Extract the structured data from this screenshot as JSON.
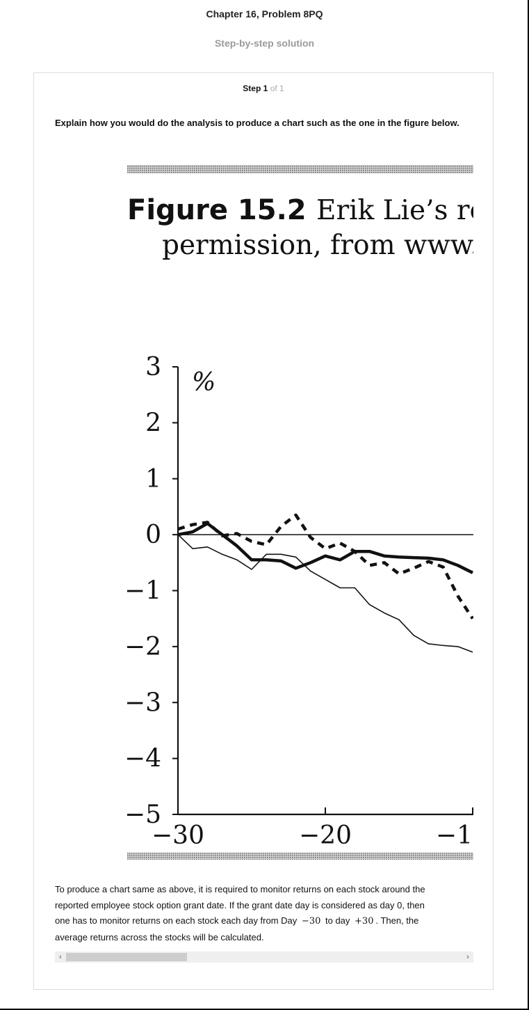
{
  "header": {
    "title": "Chapter 16, Problem 8PQ",
    "subtitle": "Step-by-step solution"
  },
  "step": {
    "word": "Step",
    "number": "1",
    "of_text": "of 1"
  },
  "question": "Explain how you would do the analysis to produce a chart such as the one in the figure below.",
  "figure": {
    "title_bold": "Figure 15.2",
    "title_rest": "Erik Lie’s re",
    "caption_line2": "permission, from www.bi",
    "ylabel": "%"
  },
  "chart_data": {
    "type": "line",
    "xlim": [
      -30,
      -10
    ],
    "ylim": [
      -5,
      3
    ],
    "x_ticks": [
      "−30",
      "−20",
      "−1"
    ],
    "y_ticks": [
      "3",
      "2",
      "1",
      "0",
      "−1",
      "−2",
      "−3",
      "−4",
      "−5"
    ],
    "ylabel": "%",
    "zero_line": true,
    "series": [
      {
        "style": "thick-solid",
        "x": [
          -30,
          -29,
          -28,
          -27,
          -26,
          -25,
          -24,
          -23,
          -22,
          -21,
          -20,
          -19,
          -18,
          -17,
          -16,
          -15,
          -14,
          -13,
          -12,
          -11,
          -10
        ],
        "y": [
          0.0,
          0.05,
          0.2,
          0.0,
          -0.2,
          -0.45,
          -0.45,
          -0.47,
          -0.6,
          -0.5,
          -0.38,
          -0.45,
          -0.3,
          -0.3,
          -0.38,
          -0.4,
          -0.41,
          -0.42,
          -0.45,
          -0.55,
          -0.68
        ]
      },
      {
        "style": "thick-dashed",
        "x": [
          -30,
          -29,
          -28,
          -27,
          -26,
          -25,
          -24,
          -23,
          -22,
          -21,
          -20,
          -19,
          -18,
          -17,
          -16,
          -15,
          -14,
          -13,
          -12,
          -11,
          -10
        ],
        "y": [
          0.1,
          0.18,
          0.22,
          -0.02,
          0.02,
          -0.12,
          -0.18,
          0.15,
          0.35,
          -0.05,
          -0.25,
          -0.15,
          -0.3,
          -0.55,
          -0.5,
          -0.7,
          -0.6,
          -0.48,
          -0.58,
          -1.1,
          -1.5
        ]
      },
      {
        "style": "thin-solid",
        "x": [
          -30,
          -29,
          -28,
          -27,
          -26,
          -25,
          -24,
          -23,
          -22,
          -21,
          -20,
          -19,
          -18,
          -17,
          -16,
          -15,
          -14,
          -13,
          -12,
          -11,
          -10
        ],
        "y": [
          0.0,
          -0.25,
          -0.22,
          -0.35,
          -0.45,
          -0.62,
          -0.35,
          -0.35,
          -0.4,
          -0.65,
          -0.8,
          -0.95,
          -0.95,
          -1.25,
          -1.4,
          -1.52,
          -1.8,
          -1.95,
          -1.98,
          -2.0,
          -2.1
        ]
      }
    ]
  },
  "answer": {
    "line1": "To produce a chart same as above, it is required to monitor returns on each stock around the",
    "line2": "reported employee stock option grant date. If the grant date day is considered as day 0, then",
    "line3_a": "one has to monitor returns on each stock each day from Day",
    "math_start": "−30",
    "line3_b": "to day",
    "math_end": "+30",
    "line3_c": ". Then, the",
    "line4": "average returns across the stocks will be calculated."
  },
  "scrollbar": {
    "left_arrow": "‹",
    "right_arrow": "›"
  }
}
